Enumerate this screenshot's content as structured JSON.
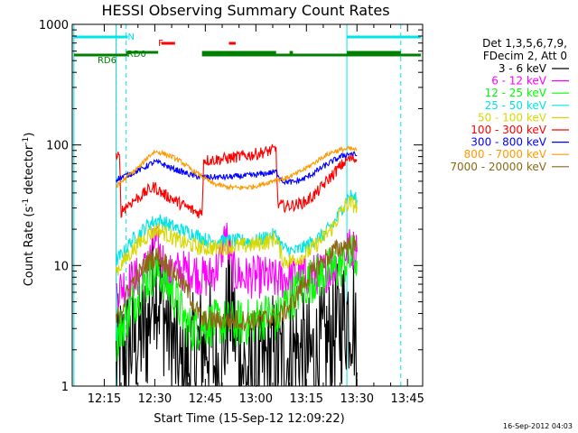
{
  "chart_data": {
    "type": "line",
    "title": "HESSI Observing Summary Count Rates",
    "xlabel": "Start Time (15-Sep-12 12:09:22)",
    "ylabel_main": "Count Rate (s",
    "ylabel_sup1": "-1",
    "ylabel_mid": " detector",
    "ylabel_sup2": "-1",
    "ylabel_end": ")",
    "yscale": "log",
    "ylim": [
      1,
      1000
    ],
    "xlim_minutes": [
      725.5,
      829.5
    ],
    "x_ticks": [
      {
        "m": 735,
        "label": "12:15"
      },
      {
        "m": 750,
        "label": "12:30"
      },
      {
        "m": 765,
        "label": "12:45"
      },
      {
        "m": 780,
        "label": "13:00"
      },
      {
        "m": 795,
        "label": "13:15"
      },
      {
        "m": 810,
        "label": "13:30"
      },
      {
        "m": 825,
        "label": "13:45"
      }
    ],
    "y_ticks": [
      {
        "v": 1,
        "label": "1"
      },
      {
        "v": 10,
        "label": "10"
      },
      {
        "v": 100,
        "label": "100"
      },
      {
        "v": 1000,
        "label": "1000"
      }
    ],
    "legend_header": [
      "Det 1,3,5,6,7,9,",
      "FDecim 2, Att 0"
    ],
    "timestamp": "16-Sep-2012 04:03",
    "vlines": [
      {
        "m": 726,
        "style": "solid",
        "color": "#00e5e5"
      },
      {
        "m": 738.5,
        "style": "solid",
        "color": "#00e5e5"
      },
      {
        "m": 741.5,
        "style": "dashed",
        "color": "#00e5e5"
      },
      {
        "m": 807,
        "style": "solid",
        "color": "#00e5e5"
      },
      {
        "m": 823,
        "style": "dashed",
        "color": "#00e5e5"
      }
    ],
    "flag_bars": [
      {
        "label": "N",
        "color": "#00e5e5",
        "label_m": 742,
        "segments": [
          [
            726,
            742
          ],
          [
            807,
            829
          ]
        ]
      },
      {
        "label": "F",
        "color": "#ff0000",
        "label_m": 751,
        "segments": [
          [
            752,
            756
          ],
          [
            772,
            774
          ]
        ]
      },
      {
        "label": "RD0",
        "color": "#008000",
        "label_m": 741.8,
        "segments": [
          [
            741.5,
            751
          ],
          [
            764,
            786
          ],
          [
            790,
            791
          ],
          [
            807,
            823
          ]
        ]
      },
      {
        "label": "RD6",
        "color": "#008000",
        "label_m": 733,
        "segments": [
          [
            726,
            742
          ],
          [
            764,
            786
          ],
          [
            786,
            807
          ],
          [
            786,
            824
          ],
          [
            824,
            829
          ]
        ]
      }
    ],
    "series": [
      {
        "name": "3 - 6 keV",
        "color": "#000000",
        "noise": 0.55,
        "points": [
          [
            738.5,
            1.6
          ],
          [
            741.5,
            2
          ],
          [
            745,
            2.5
          ],
          [
            748,
            3
          ],
          [
            750,
            9
          ],
          [
            751,
            6
          ],
          [
            754,
            3
          ],
          [
            756,
            2
          ],
          [
            757,
            1.2
          ],
          [
            760,
            1.5
          ],
          [
            763,
            2
          ],
          [
            766,
            2.5
          ],
          [
            768,
            1.4
          ],
          [
            770,
            1.5
          ],
          [
            772,
            5.5
          ],
          [
            775,
            1.8
          ],
          [
            778,
            1.1
          ],
          [
            781,
            1.3
          ],
          [
            785,
            1.8
          ],
          [
            788,
            1.6
          ],
          [
            792,
            2
          ],
          [
            795,
            1.6
          ],
          [
            798,
            1.8
          ],
          [
            801,
            2.2
          ],
          [
            804,
            3
          ],
          [
            807,
            4
          ],
          [
            809,
            4.2
          ],
          [
            810,
            1.3
          ]
        ]
      },
      {
        "name": "6 - 12 keV",
        "color": "#ff00ff",
        "noise": 0.18,
        "points": [
          [
            738.5,
            6
          ],
          [
            741,
            7
          ],
          [
            745,
            8
          ],
          [
            748,
            10
          ],
          [
            750,
            16
          ],
          [
            752,
            12
          ],
          [
            754,
            8
          ],
          [
            756,
            9
          ],
          [
            758,
            9
          ],
          [
            762,
            9
          ],
          [
            764,
            8
          ],
          [
            766,
            8
          ],
          [
            769,
            10
          ],
          [
            771,
            19
          ],
          [
            773,
            9
          ],
          [
            776,
            8
          ],
          [
            780,
            8
          ],
          [
            783,
            8
          ],
          [
            786,
            7.5
          ],
          [
            790,
            8
          ],
          [
            795,
            8.2
          ],
          [
            798,
            8.5
          ],
          [
            801,
            9
          ],
          [
            804,
            10
          ],
          [
            806,
            13
          ],
          [
            808,
            14
          ],
          [
            810,
            13
          ]
        ]
      },
      {
        "name": "12 - 25 keV",
        "color": "#00ff00",
        "noise": 0.2,
        "points": [
          [
            738.5,
            2.5
          ],
          [
            740,
            3
          ],
          [
            743,
            4.5
          ],
          [
            746,
            6.5
          ],
          [
            749,
            8.5
          ],
          [
            751,
            9
          ],
          [
            753,
            7.5
          ],
          [
            756,
            5.5
          ],
          [
            758,
            4
          ],
          [
            760,
            3
          ],
          [
            762,
            3
          ],
          [
            764,
            3.3
          ],
          [
            767,
            3.3
          ],
          [
            770,
            3.4
          ],
          [
            773,
            3.3
          ],
          [
            776,
            3.3
          ],
          [
            780,
            3.5
          ],
          [
            784,
            4
          ],
          [
            786,
            3.5
          ],
          [
            788,
            4.5
          ],
          [
            792,
            6
          ],
          [
            796,
            7.5
          ],
          [
            800,
            8.5
          ],
          [
            804,
            9.5
          ],
          [
            807,
            11
          ],
          [
            809,
            12
          ],
          [
            810,
            11
          ]
        ]
      },
      {
        "name": "25 - 50 keV",
        "color": "#00e5e5",
        "noise": 0.06,
        "points": [
          [
            738.5,
            11
          ],
          [
            741,
            13
          ],
          [
            743,
            16
          ],
          [
            746,
            19
          ],
          [
            748,
            22
          ],
          [
            751,
            24
          ],
          [
            754,
            22
          ],
          [
            757,
            20
          ],
          [
            760,
            19
          ],
          [
            762,
            18
          ],
          [
            764,
            17
          ],
          [
            766,
            16
          ],
          [
            769,
            16
          ],
          [
            773,
            16
          ],
          [
            776,
            16
          ],
          [
            780,
            16
          ],
          [
            784,
            17.5
          ],
          [
            786,
            18
          ],
          [
            788,
            14
          ],
          [
            791,
            13
          ],
          [
            794,
            14
          ],
          [
            797,
            16
          ],
          [
            800,
            18
          ],
          [
            803,
            22
          ],
          [
            805,
            28
          ],
          [
            807,
            36
          ],
          [
            808,
            38
          ],
          [
            810,
            35
          ]
        ]
      },
      {
        "name": "50 - 100 keV",
        "color": "#d8d800",
        "noise": 0.07,
        "points": [
          [
            738.5,
            9
          ],
          [
            741,
            11
          ],
          [
            743,
            13
          ],
          [
            746,
            16
          ],
          [
            748,
            18
          ],
          [
            751,
            20
          ],
          [
            754,
            18
          ],
          [
            757,
            16
          ],
          [
            760,
            15
          ],
          [
            762,
            14.5
          ],
          [
            764,
            14
          ],
          [
            766,
            14
          ],
          [
            769,
            14
          ],
          [
            772,
            14.5
          ],
          [
            776,
            14.5
          ],
          [
            780,
            15
          ],
          [
            784,
            16
          ],
          [
            786,
            17
          ],
          [
            788,
            11
          ],
          [
            791,
            11
          ],
          [
            794,
            12
          ],
          [
            797,
            14
          ],
          [
            800,
            17
          ],
          [
            803,
            21
          ],
          [
            805,
            27
          ],
          [
            807,
            32
          ],
          [
            808,
            33
          ],
          [
            810,
            31
          ]
        ]
      },
      {
        "name": "100 - 300 keV",
        "color": "#ff0000",
        "noise": 0.05,
        "points": [
          [
            738.5,
            80
          ],
          [
            739.5,
            78
          ],
          [
            740,
            28
          ],
          [
            742,
            32
          ],
          [
            744,
            35
          ],
          [
            746,
            38
          ],
          [
            748,
            42
          ],
          [
            750,
            45
          ],
          [
            752,
            40
          ],
          [
            755,
            36
          ],
          [
            758,
            32
          ],
          [
            760,
            30
          ],
          [
            762,
            28
          ],
          [
            764,
            27
          ],
          [
            764.5,
            75
          ],
          [
            767,
            75
          ],
          [
            771,
            77
          ],
          [
            775,
            80
          ],
          [
            779,
            83
          ],
          [
            783,
            88
          ],
          [
            786,
            92
          ],
          [
            786.5,
            32
          ],
          [
            789,
            31
          ],
          [
            792,
            32
          ],
          [
            795,
            34
          ],
          [
            798,
            40
          ],
          [
            801,
            50
          ],
          [
            804,
            62
          ],
          [
            807,
            75
          ],
          [
            809,
            78
          ],
          [
            810,
            74
          ]
        ]
      },
      {
        "name": "300 - 800 keV",
        "color": "#0000ff",
        "noise": 0.025,
        "points": [
          [
            738.5,
            52
          ],
          [
            741,
            55
          ],
          [
            743,
            58
          ],
          [
            746,
            63
          ],
          [
            748,
            68
          ],
          [
            750,
            72
          ],
          [
            752,
            70
          ],
          [
            755,
            64
          ],
          [
            758,
            60
          ],
          [
            761,
            56
          ],
          [
            764,
            54
          ],
          [
            767,
            54
          ],
          [
            771,
            54
          ],
          [
            775,
            55
          ],
          [
            779,
            56
          ],
          [
            783,
            58
          ],
          [
            786,
            60
          ],
          [
            788,
            50
          ],
          [
            791,
            49
          ],
          [
            794,
            52
          ],
          [
            797,
            58
          ],
          [
            800,
            66
          ],
          [
            803,
            74
          ],
          [
            806,
            82
          ],
          [
            808,
            85
          ],
          [
            810,
            82
          ]
        ]
      },
      {
        "name": "800 - 7000 keV",
        "color": "#ff9900",
        "noise": 0.02,
        "points": [
          [
            738.5,
            45
          ],
          [
            741,
            52
          ],
          [
            743,
            58
          ],
          [
            746,
            68
          ],
          [
            748,
            80
          ],
          [
            750,
            88
          ],
          [
            752,
            86
          ],
          [
            755,
            80
          ],
          [
            758,
            72
          ],
          [
            761,
            62
          ],
          [
            764,
            55
          ],
          [
            767,
            48
          ],
          [
            771,
            45
          ],
          [
            775,
            44
          ],
          [
            779,
            45
          ],
          [
            783,
            48
          ],
          [
            786,
            52
          ],
          [
            788,
            52
          ],
          [
            791,
            56
          ],
          [
            794,
            62
          ],
          [
            797,
            70
          ],
          [
            800,
            80
          ],
          [
            803,
            88
          ],
          [
            806,
            92
          ],
          [
            808,
            93
          ],
          [
            810,
            90
          ]
        ]
      },
      {
        "name": "7000 - 20000 keV",
        "color": "#8b6914",
        "noise": 0.09,
        "points": [
          [
            738.5,
            3.5
          ],
          [
            741,
            5
          ],
          [
            743,
            7
          ],
          [
            746,
            9
          ],
          [
            748,
            11
          ],
          [
            751,
            12
          ],
          [
            754,
            10
          ],
          [
            757,
            8
          ],
          [
            760,
            6
          ],
          [
            762,
            4.5
          ],
          [
            764,
            3.5
          ],
          [
            767,
            3.5
          ],
          [
            771,
            3.5
          ],
          [
            775,
            3.5
          ],
          [
            779,
            3.5
          ],
          [
            783,
            3.6
          ],
          [
            786,
            3.7
          ],
          [
            788,
            4
          ],
          [
            791,
            5
          ],
          [
            794,
            7
          ],
          [
            797,
            9
          ],
          [
            800,
            11
          ],
          [
            803,
            13
          ],
          [
            806,
            14.5
          ],
          [
            808,
            15
          ],
          [
            810,
            14
          ]
        ]
      }
    ]
  }
}
